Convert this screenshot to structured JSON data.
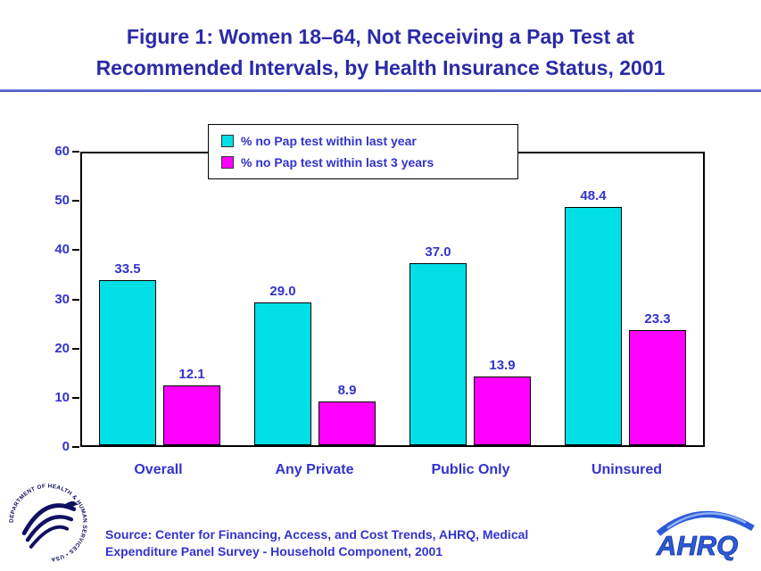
{
  "slide": {
    "title_line1": "Figure 1: Women 18–64, Not Receiving a Pap Test at",
    "title_line2": "Recommended Intervals, by Health Insurance Status, 2001"
  },
  "chart_data": {
    "type": "bar",
    "title": "Figure 1: Women 18–64, Not Receiving a Pap Test at Recommended Intervals, by Health Insurance Status, 2001",
    "categories": [
      "Overall",
      "Any Private",
      "Public Only",
      "Uninsured"
    ],
    "series": [
      {
        "name": "% no Pap test within last year",
        "color": "#00e0e6",
        "values": [
          33.5,
          29.0,
          37.0,
          48.4
        ]
      },
      {
        "name": "% no Pap test within last 3 years",
        "color": "#ff00ff",
        "values": [
          12.1,
          8.9,
          13.9,
          23.3
        ]
      }
    ],
    "xlabel": "",
    "ylabel": "",
    "ylim": [
      0,
      60
    ],
    "yticks": [
      0,
      10,
      20,
      30,
      40,
      50,
      60
    ],
    "grid": false,
    "legend_position": "top-center",
    "value_labels": true
  },
  "footer": {
    "source_line1": "Source:  Center for Financing, Access, and Cost Trends, AHRQ, Medical",
    "source_line2": "Expenditure Panel Survey - Household Component, 2001",
    "ahrq_logo_text": "AHRQ",
    "hhs_logo_text": "DEPARTMENT OF HEALTH & HUMAN SERVICES • USA"
  },
  "colors": {
    "title_blue": "#2b2ba8",
    "label_blue": "#3333cc",
    "bar_cyan": "#00e0e6",
    "bar_magenta": "#ff00ff"
  }
}
